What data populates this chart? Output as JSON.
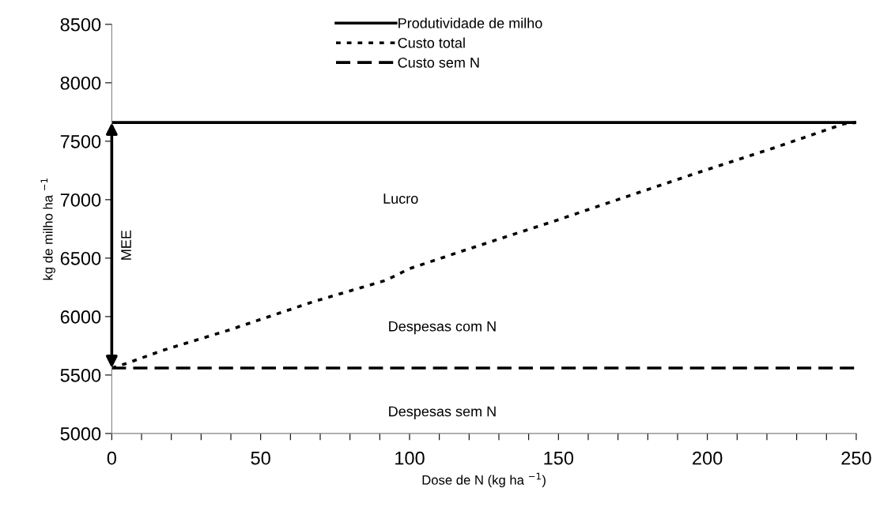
{
  "chart_data": {
    "type": "line",
    "xlabel": "Dose de N (kg ha $^{−1}$)",
    "ylabel": "kg de milho ha $^{−1}$",
    "xlim": [
      0,
      250
    ],
    "ylim": [
      5000,
      8500
    ],
    "xticks": [
      0,
      {
        "value": 10,
        "label": null
      },
      {
        "value": 20,
        "label": null
      },
      {
        "value": 30,
        "label": null
      },
      {
        "value": 40,
        "label": null
      },
      50,
      {
        "value": 60,
        "label": null
      },
      {
        "value": 70,
        "label": null
      },
      {
        "value": 80,
        "label": null
      },
      {
        "value": 90,
        "label": null
      },
      100,
      {
        "value": 110,
        "label": null
      },
      {
        "value": 120,
        "label": null
      },
      {
        "value": 130,
        "label": null
      },
      {
        "value": 140,
        "label": null
      },
      150,
      {
        "value": 160,
        "label": null
      },
      {
        "value": 170,
        "label": null
      },
      {
        "value": 180,
        "label": null
      },
      {
        "value": 190,
        "label": null
      },
      200,
      {
        "value": 210,
        "label": null
      },
      {
        "value": 220,
        "label": null
      },
      {
        "value": 230,
        "label": null
      },
      {
        "value": 240,
        "label": null
      },
      250
    ],
    "yticks": [
      5000,
      5500,
      6000,
      6500,
      7000,
      7500,
      8000,
      8500
    ],
    "series": [
      {
        "name": "Produtividade de milho",
        "color": "#000000",
        "line_style": "solid",
        "x": [
          0,
          250
        ],
        "values": [
          7660,
          7660
        ]
      },
      {
        "name": "Custo total",
        "color": "#000000",
        "line_style": "dotted",
        "x": [
          0,
          5,
          17,
          40,
          68,
          92,
          100,
          120,
          132,
          149,
          171,
          199,
          222,
          246,
          250
        ],
        "values": [
          5560,
          5600,
          5710,
          5890,
          6130,
          6310,
          6410,
          6580,
          6680,
          6820,
          7010,
          7250,
          7440,
          7650,
          7660
        ]
      },
      {
        "name": "Custo sem N",
        "color": "#000000",
        "line_style": "dashed",
        "x": [
          0,
          250
        ],
        "values": [
          5560,
          5560
        ]
      }
    ],
    "annotations": [
      "Lucro",
      "Despesas com N",
      "Despesas sem N",
      "MEE"
    ],
    "legend": "top",
    "grid": false,
    "marker": "none"
  }
}
